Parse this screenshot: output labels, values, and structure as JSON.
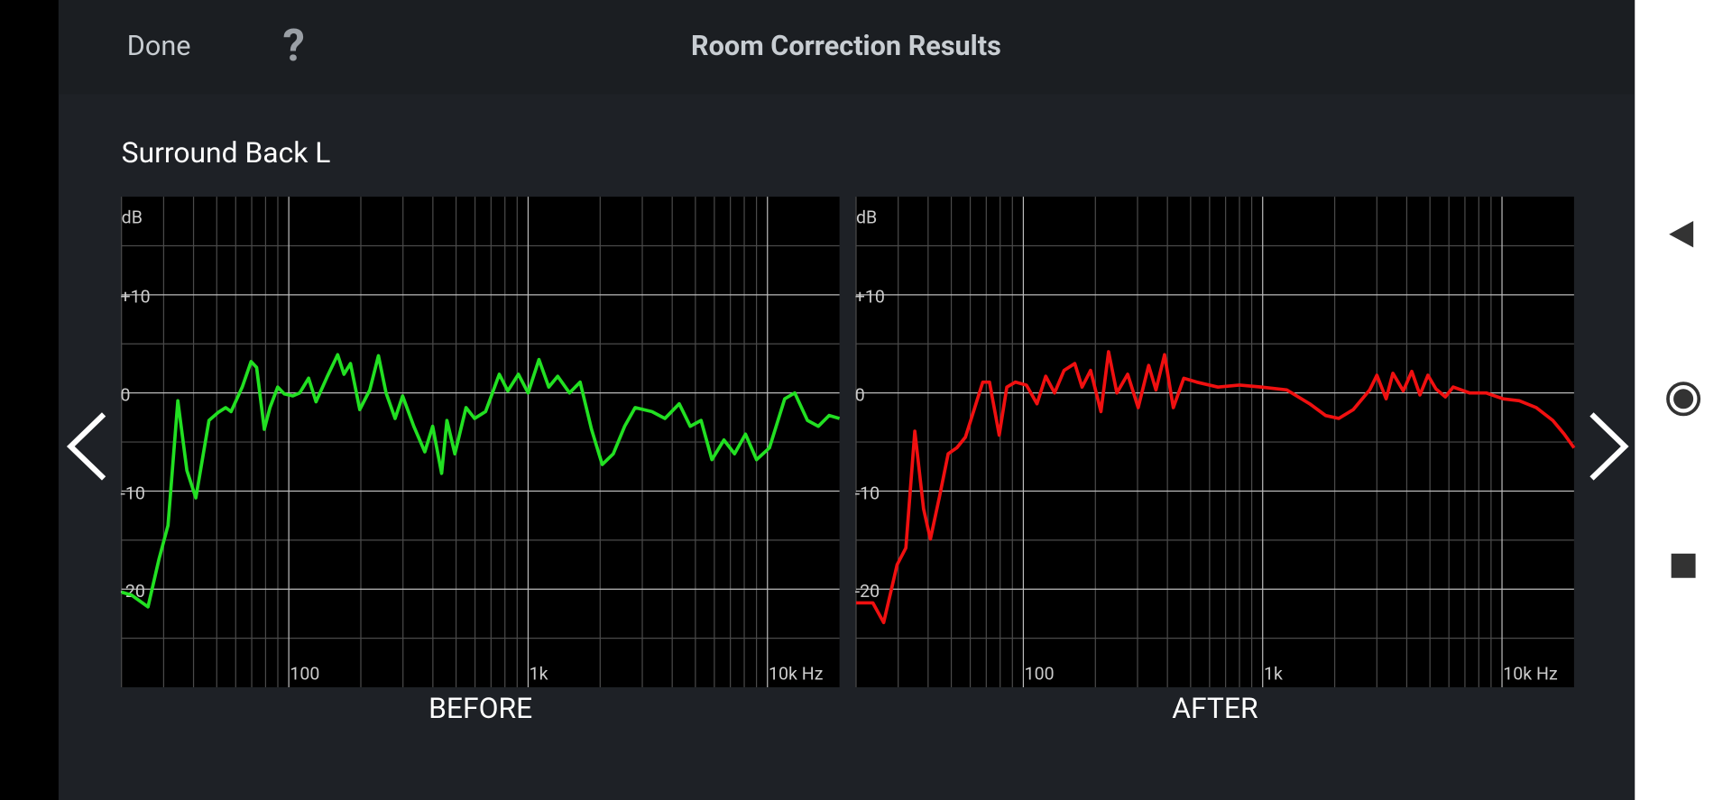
{
  "header": {
    "done": "Done",
    "help": "?",
    "title": "Room Correction Results"
  },
  "subtitle": "Surround Back L",
  "chart_data": [
    {
      "type": "line",
      "caption": "BEFORE",
      "y_unit": "dB",
      "color": "#22e022",
      "xscale": "log",
      "xlim": [
        20,
        20000
      ],
      "ylim": [
        -30,
        20
      ],
      "xticks": [
        100,
        {
          "value": 1000,
          "label": "1k"
        },
        {
          "value": 10000,
          "label": "10k Hz"
        }
      ],
      "yticks": [
        {
          "value": 10,
          "label": "+10"
        },
        0,
        -10,
        -20
      ],
      "minor_xticks": [
        20,
        30,
        40,
        50,
        60,
        70,
        80,
        90,
        200,
        300,
        400,
        500,
        600,
        700,
        800,
        900,
        2000,
        3000,
        4000,
        5000,
        6000,
        7000,
        8000,
        9000
      ],
      "minor_yticks": [
        -25,
        -15,
        -5,
        5,
        15
      ],
      "x": [
        20,
        22,
        25.8,
        28.7,
        31.3,
        34.4,
        37.5,
        40.9,
        46.4,
        50.6,
        54.5,
        57.4,
        63.9,
        69.6,
        73.4,
        79,
        83.4,
        89.9,
        95.8,
        104,
        111,
        121,
        130,
        145,
        160,
        170,
        181,
        198,
        218,
        237,
        255,
        278,
        299,
        333,
        370,
        399,
        435,
        458,
        494,
        550,
        598,
        664,
        758,
        822,
        911,
        1000,
        1110,
        1220,
        1330,
        1490,
        1650,
        1840,
        2040,
        2270,
        2530,
        2800,
        3290,
        3730,
        4280,
        4760,
        5280,
        5860,
        6580,
        7290,
        8100,
        9000,
        10200,
        11800,
        13000,
        14700,
        16300,
        18100,
        20000
      ],
      "values": [
        -20.3,
        -20.6,
        -21.8,
        -16.9,
        -13.5,
        -0.8,
        -7.9,
        -10.7,
        -2.8,
        -2.0,
        -1.5,
        -1.9,
        0.6,
        3.2,
        2.6,
        -3.7,
        -1.5,
        0.6,
        -0.1,
        -0.3,
        0,
        1.5,
        -0.9,
        1.7,
        3.9,
        1.9,
        3.0,
        -1.7,
        0.3,
        3.8,
        0,
        -2.6,
        -0.3,
        -3.4,
        -6.0,
        -3.4,
        -8.2,
        -2.8,
        -6.2,
        -1.5,
        -2.6,
        -1.9,
        1.9,
        0.2,
        1.9,
        0,
        3.4,
        0.6,
        1.7,
        0,
        1.1,
        -3.7,
        -7.3,
        -6.2,
        -3.4,
        -1.5,
        -1.9,
        -2.6,
        -1.1,
        -3.4,
        -2.8,
        -6.8,
        -4.8,
        -6.2,
        -4.2,
        -6.8,
        -5.6,
        -0.6,
        0,
        -2.8,
        -3.4,
        -2.3,
        -2.6
      ]
    },
    {
      "type": "line",
      "caption": "AFTER",
      "y_unit": "dB",
      "color": "#f01010",
      "xscale": "log",
      "xlim": [
        20,
        20000
      ],
      "ylim": [
        -30,
        20
      ],
      "xticks": [
        100,
        {
          "value": 1000,
          "label": "1k"
        },
        {
          "value": 10000,
          "label": "10k Hz"
        }
      ],
      "yticks": [
        {
          "value": 10,
          "label": "+10"
        },
        0,
        -10,
        -20
      ],
      "minor_xticks": [
        20,
        30,
        40,
        50,
        60,
        70,
        80,
        90,
        200,
        300,
        400,
        500,
        600,
        700,
        800,
        900,
        2000,
        3000,
        4000,
        5000,
        6000,
        7000,
        8000,
        9000
      ],
      "minor_yticks": [
        -25,
        -15,
        -5,
        5,
        15
      ],
      "x": [
        20,
        23.5,
        26.1,
        29.7,
        32.3,
        35.2,
        38.3,
        40.9,
        44.5,
        48.5,
        52.7,
        57.3,
        62.3,
        67.7,
        72.2,
        79.3,
        85.3,
        92.7,
        103,
        114,
        124,
        135,
        148,
        164,
        176,
        191,
        211,
        227,
        246,
        273,
        302,
        334,
        358,
        389,
        423,
        468,
        530,
        650,
        800,
        990,
        1260,
        1570,
        1830,
        2080,
        2390,
        2800,
        3000,
        3280,
        3500,
        3870,
        4200,
        4540,
        4900,
        5300,
        5800,
        6250,
        7310,
        8580,
        10100,
        11800,
        13900,
        16300,
        18200,
        20000
      ],
      "values": [
        -21.4,
        -21.4,
        -23.4,
        -17.5,
        -15.8,
        -3.9,
        -11.8,
        -14.9,
        -10.7,
        -6.2,
        -5.6,
        -4.5,
        -1.7,
        1.1,
        1.1,
        -4.3,
        0.6,
        1.1,
        0.8,
        -1.1,
        1.7,
        0,
        2.3,
        3.0,
        0.6,
        2.3,
        -1.9,
        4.2,
        0,
        1.9,
        -1.5,
        2.8,
        0.3,
        3.9,
        -1.5,
        1.5,
        1.1,
        0.6,
        0.8,
        0.6,
        0.3,
        -1.1,
        -2.3,
        -2.6,
        -1.7,
        0.3,
        1.8,
        -0.6,
        2.0,
        0.2,
        2.2,
        -0.2,
        1.8,
        0.4,
        -0.4,
        0.6,
        0,
        0,
        -0.6,
        -0.8,
        -1.5,
        -2.8,
        -4.2,
        -5.6
      ]
    }
  ]
}
